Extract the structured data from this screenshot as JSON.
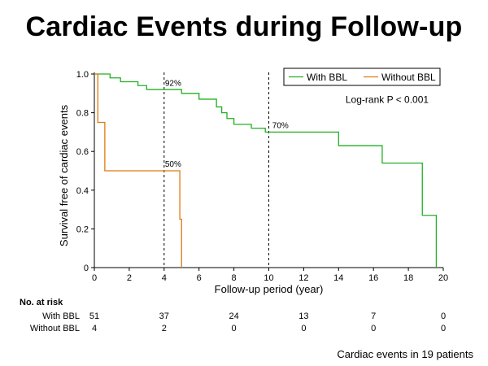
{
  "page_title": "Cardiac Events during Follow-up",
  "chart_data": {
    "type": "line",
    "subtype": "kaplan-meier step",
    "title": "Cardiac Events during Follow-up",
    "xlabel": "Follow-up period (year)",
    "ylabel": "Survival free of cardiac events",
    "xlim": [
      0,
      20
    ],
    "ylim": [
      0,
      1.0
    ],
    "xticks": [
      0,
      2,
      4,
      6,
      8,
      10,
      12,
      14,
      16,
      18,
      20
    ],
    "yticks": [
      0,
      0.2,
      0.4,
      0.6,
      0.8,
      1.0
    ],
    "ytick_labels": [
      "0",
      "0.2",
      "0.4",
      "0.6",
      "0.8",
      "1.0"
    ],
    "grid": false,
    "legend_position": "top-right",
    "series": [
      {
        "name": "With BBL",
        "color": "#22b022",
        "steps": [
          {
            "x": 0,
            "y": 1.0
          },
          {
            "x": 0.9,
            "y": 0.98
          },
          {
            "x": 1.5,
            "y": 0.96
          },
          {
            "x": 2.5,
            "y": 0.94
          },
          {
            "x": 3.0,
            "y": 0.92
          },
          {
            "x": 5.0,
            "y": 0.9
          },
          {
            "x": 6.0,
            "y": 0.87
          },
          {
            "x": 7.0,
            "y": 0.83
          },
          {
            "x": 7.3,
            "y": 0.8
          },
          {
            "x": 7.6,
            "y": 0.77
          },
          {
            "x": 8.0,
            "y": 0.74
          },
          {
            "x": 9.0,
            "y": 0.72
          },
          {
            "x": 9.8,
            "y": 0.7
          },
          {
            "x": 14.0,
            "y": 0.63
          },
          {
            "x": 16.5,
            "y": 0.54
          },
          {
            "x": 18.8,
            "y": 0.27
          },
          {
            "x": 19.6,
            "y": 0.0
          }
        ],
        "end_x": 19.6
      },
      {
        "name": "Without BBL",
        "color": "#e07a10",
        "steps": [
          {
            "x": 0,
            "y": 1.0
          },
          {
            "x": 0.2,
            "y": 0.75
          },
          {
            "x": 0.6,
            "y": 0.5
          },
          {
            "x": 4.9,
            "y": 0.25
          },
          {
            "x": 5.0,
            "y": 0.0
          }
        ],
        "end_x": 5.0
      }
    ],
    "reference_lines": [
      {
        "x": 4,
        "style": "dashed"
      },
      {
        "x": 10,
        "style": "dashed"
      }
    ],
    "annotations": [
      {
        "text": "92%",
        "x": 4.05,
        "y": 0.94
      },
      {
        "text": "50%",
        "x": 4.05,
        "y": 0.52
      },
      {
        "text": "70%",
        "x": 10.2,
        "y": 0.72
      },
      {
        "text": "Log-rank P < 0.001",
        "x": 14.4,
        "y": 0.85
      }
    ],
    "risk_table": {
      "header": "No. at risk",
      "times": [
        0,
        4,
        8,
        12,
        16,
        20
      ],
      "rows": [
        {
          "label": "With BBL",
          "values": [
            "51",
            "37",
            "24",
            "13",
            "7",
            "0"
          ]
        },
        {
          "label": "Without BBL",
          "values": [
            "4",
            "2",
            "0",
            "0",
            "0",
            "0"
          ]
        }
      ]
    }
  },
  "footnote": "Cardiac events in 19 patients"
}
